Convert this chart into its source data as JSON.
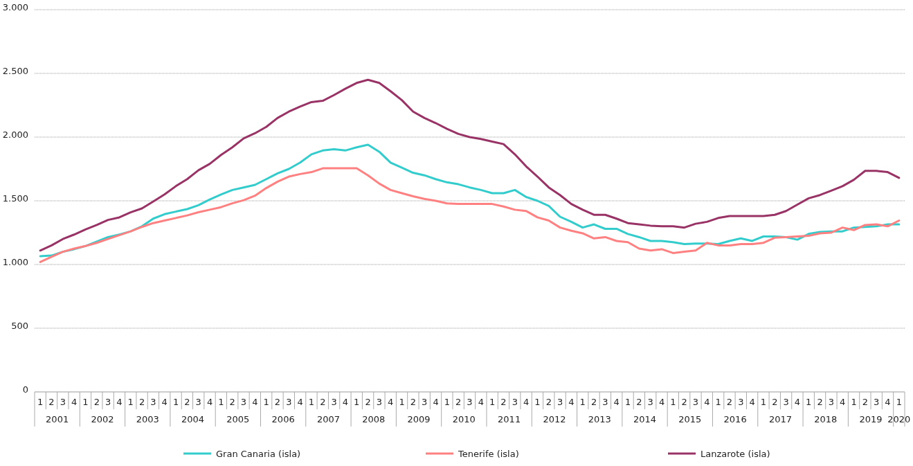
{
  "chart_data": {
    "type": "line",
    "categories": [
      "1",
      "2",
      "3",
      "4",
      "1",
      "2",
      "3",
      "4",
      "1",
      "2",
      "3",
      "4",
      "1",
      "2",
      "3",
      "4",
      "1",
      "2",
      "3",
      "4",
      "1",
      "2",
      "3",
      "4",
      "1",
      "2",
      "3",
      "4",
      "1",
      "2",
      "3",
      "4",
      "1",
      "2",
      "3",
      "4",
      "1",
      "2",
      "3",
      "4",
      "1",
      "2",
      "3",
      "4",
      "1",
      "2",
      "3",
      "4",
      "1",
      "2",
      "3",
      "4",
      "1",
      "2",
      "3",
      "4",
      "1",
      "2",
      "3",
      "4",
      "1",
      "2",
      "3",
      "4",
      "1",
      "2",
      "3",
      "4",
      "1",
      "2",
      "3",
      "4",
      "1",
      "2",
      "3",
      "4",
      "1"
    ],
    "annotations": [
      "2001",
      "2002",
      "2003",
      "2004",
      "2005",
      "2006",
      "2007",
      "2008",
      "2009",
      "2010",
      "2011",
      "2012",
      "2013",
      "2014",
      "2015",
      "2016",
      "2017",
      "2018",
      "2019",
      "2020"
    ],
    "series": [
      {
        "name": "Gran Canaria (isla)",
        "color": "#33cccc",
        "values": [
          1065,
          1070,
          1100,
          1120,
          1145,
          1180,
          1215,
          1235,
          1260,
          1300,
          1360,
          1395,
          1415,
          1435,
          1465,
          1510,
          1550,
          1585,
          1605,
          1625,
          1670,
          1715,
          1750,
          1800,
          1865,
          1895,
          1905,
          1895,
          1920,
          1940,
          1885,
          1800,
          1760,
          1720,
          1700,
          1670,
          1645,
          1630,
          1605,
          1585,
          1560,
          1560,
          1585,
          1530,
          1500,
          1460,
          1375,
          1335,
          1290,
          1315,
          1280,
          1280,
          1240,
          1215,
          1185,
          1185,
          1175,
          1160,
          1165,
          1165,
          1160,
          1185,
          1205,
          1185,
          1220,
          1220,
          1215,
          1195,
          1240,
          1255,
          1260,
          1260,
          1290,
          1295,
          1300,
          1315,
          1315
        ]
      },
      {
        "name": "Tenerife (isla)",
        "color": "#ff8080",
        "values": [
          1020,
          1060,
          1100,
          1125,
          1145,
          1170,
          1200,
          1230,
          1260,
          1295,
          1325,
          1345,
          1365,
          1385,
          1410,
          1430,
          1450,
          1480,
          1505,
          1540,
          1600,
          1650,
          1690,
          1710,
          1725,
          1755,
          1755,
          1755,
          1755,
          1700,
          1635,
          1585,
          1560,
          1535,
          1515,
          1500,
          1480,
          1475,
          1475,
          1475,
          1475,
          1455,
          1430,
          1420,
          1370,
          1345,
          1290,
          1265,
          1245,
          1205,
          1215,
          1185,
          1175,
          1125,
          1110,
          1120,
          1090,
          1100,
          1110,
          1170,
          1150,
          1150,
          1160,
          1160,
          1170,
          1210,
          1215,
          1220,
          1225,
          1245,
          1250,
          1290,
          1270,
          1310,
          1315,
          1300,
          1345
        ]
      },
      {
        "name": "Lanzarote (isla)",
        "color": "#993366",
        "values": [
          1110,
          1150,
          1200,
          1235,
          1275,
          1310,
          1350,
          1370,
          1410,
          1440,
          1495,
          1550,
          1615,
          1670,
          1740,
          1790,
          1860,
          1920,
          1990,
          2030,
          2080,
          2150,
          2200,
          2240,
          2275,
          2285,
          2330,
          2380,
          2425,
          2450,
          2425,
          2360,
          2290,
          2200,
          2150,
          2110,
          2065,
          2025,
          2000,
          1985,
          1965,
          1945,
          1865,
          1770,
          1690,
          1605,
          1545,
          1475,
          1430,
          1390,
          1390,
          1360,
          1325,
          1315,
          1305,
          1300,
          1300,
          1290,
          1320,
          1335,
          1365,
          1380,
          1380,
          1380,
          1380,
          1390,
          1420,
          1470,
          1520,
          1545,
          1580,
          1615,
          1665,
          1735,
          1735,
          1725,
          1680
        ]
      }
    ],
    "ylim": [
      0,
      3000
    ],
    "yticks": [
      {
        "value": 0,
        "label": "0"
      },
      {
        "value": 500,
        "label": "500"
      },
      {
        "value": 1000,
        "label": "1.000"
      },
      {
        "value": 1500,
        "label": "1.500"
      },
      {
        "value": 2000,
        "label": "2.000"
      },
      {
        "value": 2500,
        "label": "2.500"
      },
      {
        "value": 3000,
        "label": "3.000"
      }
    ],
    "grid": "y",
    "legend": "bottom",
    "marker": "none",
    "line_style": "solid"
  }
}
